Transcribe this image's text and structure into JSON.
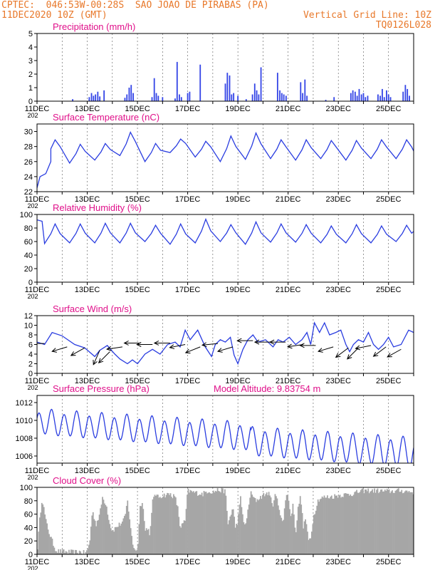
{
  "header": {
    "line1_left": "CPTEC:  046:53W-00:28S  SAO JOAO DE PIRABAS (PA)",
    "line2_left": "11DEC2020 10Z (GMT)",
    "line2_right": "Vertical Grid Line: 10Z",
    "line3_right": "TQ0126L028"
  },
  "colors": {
    "header": "#e8782a",
    "title": "#e0108a",
    "line": "#2a3de0",
    "bar": "#3344e6",
    "cloud": "#a6a6a6",
    "arrow": "#000000"
  },
  "x_labels": [
    "11DEC",
    "13DEC",
    "15DEC",
    "17DEC",
    "19DEC",
    "21DEC",
    "23DEC",
    "25DEC"
  ],
  "x_label_stub": "202",
  "chart_data": [
    {
      "id": "precip",
      "type": "bar",
      "title": "Precipitation (mm/h)",
      "x_range_days": [
        0,
        15
      ],
      "ylim": [
        0,
        5
      ],
      "yticks": [
        "0",
        "1",
        "2",
        "3",
        "4",
        "5"
      ],
      "events": [
        {
          "day": 1.42,
          "val": 0.15
        },
        {
          "day": 2.08,
          "val": 0.3
        },
        {
          "day": 2.17,
          "val": 0.6
        },
        {
          "day": 2.25,
          "val": 0.4
        },
        {
          "day": 2.33,
          "val": 0.5
        },
        {
          "day": 2.42,
          "val": 0.7
        },
        {
          "day": 2.5,
          "val": 0.35
        },
        {
          "day": 2.67,
          "val": 0.8
        },
        {
          "day": 3.5,
          "val": 0.25
        },
        {
          "day": 3.58,
          "val": 0.5
        },
        {
          "day": 3.67,
          "val": 1.0
        },
        {
          "day": 3.75,
          "val": 1.2
        },
        {
          "day": 3.83,
          "val": 0.6
        },
        {
          "day": 4.58,
          "val": 0.3
        },
        {
          "day": 4.67,
          "val": 1.7
        },
        {
          "day": 4.75,
          "val": 0.6
        },
        {
          "day": 4.83,
          "val": 0.4
        },
        {
          "day": 5.0,
          "val": 0.3
        },
        {
          "day": 5.5,
          "val": 0.2
        },
        {
          "day": 5.58,
          "val": 2.9
        },
        {
          "day": 5.67,
          "val": 0.5
        },
        {
          "day": 5.75,
          "val": 0.3
        },
        {
          "day": 6.0,
          "val": 0.6
        },
        {
          "day": 6.08,
          "val": 0.7
        },
        {
          "day": 6.5,
          "val": 2.7
        },
        {
          "day": 7.5,
          "val": 1.3
        },
        {
          "day": 7.58,
          "val": 2.1
        },
        {
          "day": 7.67,
          "val": 1.9
        },
        {
          "day": 7.75,
          "val": 0.5
        },
        {
          "day": 7.83,
          "val": 0.6
        },
        {
          "day": 8.0,
          "val": 0.4
        },
        {
          "day": 8.33,
          "val": 0.15
        },
        {
          "day": 8.58,
          "val": 0.5
        },
        {
          "day": 8.67,
          "val": 1.3
        },
        {
          "day": 8.75,
          "val": 0.8
        },
        {
          "day": 8.83,
          "val": 0.5
        },
        {
          "day": 8.92,
          "val": 2.5
        },
        {
          "day": 9.58,
          "val": 2.1
        },
        {
          "day": 9.67,
          "val": 0.8
        },
        {
          "day": 9.75,
          "val": 0.6
        },
        {
          "day": 9.83,
          "val": 0.5
        },
        {
          "day": 9.92,
          "val": 0.4
        },
        {
          "day": 10.5,
          "val": 1.4
        },
        {
          "day": 10.58,
          "val": 0.6
        },
        {
          "day": 10.67,
          "val": 1.6
        },
        {
          "day": 10.75,
          "val": 0.4
        },
        {
          "day": 11.5,
          "val": 0.1
        },
        {
          "day": 11.83,
          "val": 0.3
        },
        {
          "day": 12.5,
          "val": 0.6
        },
        {
          "day": 12.58,
          "val": 0.8
        },
        {
          "day": 12.67,
          "val": 0.7
        },
        {
          "day": 12.75,
          "val": 0.4
        },
        {
          "day": 12.83,
          "val": 0.9
        },
        {
          "day": 12.92,
          "val": 0.5
        },
        {
          "day": 13.0,
          "val": 0.6
        },
        {
          "day": 13.08,
          "val": 0.3
        },
        {
          "day": 13.17,
          "val": 0.4
        },
        {
          "day": 13.58,
          "val": 0.5
        },
        {
          "day": 13.67,
          "val": 0.4
        },
        {
          "day": 13.75,
          "val": 0.9
        },
        {
          "day": 13.83,
          "val": 0.3
        },
        {
          "day": 13.92,
          "val": 0.8
        },
        {
          "day": 14.0,
          "val": 0.5
        },
        {
          "day": 14.08,
          "val": 0.3
        },
        {
          "day": 14.58,
          "val": 0.7
        },
        {
          "day": 14.67,
          "val": 1.2
        },
        {
          "day": 14.75,
          "val": 0.9
        },
        {
          "day": 14.83,
          "val": 0.4
        }
      ]
    },
    {
      "id": "temp",
      "type": "line",
      "title": "Surface Temperature (nC)",
      "x_range_days": [
        0,
        15
      ],
      "ylim": [
        22,
        31
      ],
      "yticks": [
        "22",
        "24",
        "26",
        "28",
        "30"
      ],
      "base": 22.5,
      "mins": [
        26.5,
        25.8,
        26.2,
        26.8,
        26.0,
        27.2,
        26.6,
        26.0,
        26.3,
        26.4,
        26.2,
        26.4,
        26.2,
        26.4,
        26.4
      ],
      "maxs": [
        28.9,
        28.3,
        28.4,
        29.9,
        28.4,
        29.0,
        28.7,
        29.4,
        29.8,
        28.9,
        28.9,
        28.8,
        28.8,
        28.9,
        28.9
      ],
      "end_value": 27.4
    },
    {
      "id": "rh",
      "type": "line",
      "title": "Relative Humidity (%)",
      "x_range_days": [
        0,
        15
      ],
      "ylim": [
        0,
        100
      ],
      "yticks": [
        "0",
        "20",
        "40",
        "60",
        "80",
        "100"
      ],
      "start": 92,
      "mins": [
        57,
        58,
        58,
        58,
        60,
        56,
        58,
        60,
        56,
        59,
        59,
        58,
        58,
        58,
        60
      ],
      "maxs": [
        86,
        86,
        87,
        87,
        84,
        86,
        93,
        85,
        89,
        86,
        85,
        83,
        85,
        83,
        84
      ],
      "end_value": 75
    },
    {
      "id": "wind",
      "type": "line",
      "title": "Surface Wind (m/s)",
      "x_range_days": [
        0,
        15
      ],
      "ylim": [
        0,
        12
      ],
      "yticks": [
        "0",
        "2",
        "4",
        "6",
        "8",
        "10",
        "12"
      ],
      "points": [
        [
          0,
          6.5
        ],
        [
          0.3,
          6.0
        ],
        [
          0.6,
          8.5
        ],
        [
          1.0,
          7.8
        ],
        [
          1.5,
          6.0
        ],
        [
          1.9,
          5.3
        ],
        [
          2.3,
          3.5
        ],
        [
          2.5,
          4.8
        ],
        [
          2.8,
          5.8
        ],
        [
          3.1,
          4.0
        ],
        [
          3.3,
          3.0
        ],
        [
          3.6,
          2.0
        ],
        [
          3.8,
          2.8
        ],
        [
          4.0,
          2.0
        ],
        [
          4.3,
          4.0
        ],
        [
          4.6,
          5.0
        ],
        [
          4.9,
          4.0
        ],
        [
          5.2,
          6.0
        ],
        [
          5.5,
          6.5
        ],
        [
          5.7,
          5.5
        ],
        [
          5.9,
          9.0
        ],
        [
          6.1,
          7.0
        ],
        [
          6.4,
          9.0
        ],
        [
          6.7,
          5.5
        ],
        [
          6.95,
          3.5
        ],
        [
          7.1,
          6.0
        ],
        [
          7.3,
          7.0
        ],
        [
          7.5,
          6.5
        ],
        [
          7.7,
          7.5
        ],
        [
          7.85,
          3.8
        ],
        [
          8.0,
          2.0
        ],
        [
          8.2,
          5.0
        ],
        [
          8.4,
          7.0
        ],
        [
          8.6,
          8.0
        ],
        [
          8.8,
          6.5
        ],
        [
          9.1,
          7.0
        ],
        [
          9.4,
          5.5
        ],
        [
          9.6,
          7.0
        ],
        [
          9.8,
          6.5
        ],
        [
          10.05,
          7.5
        ],
        [
          10.3,
          6.0
        ],
        [
          10.55,
          7.0
        ],
        [
          10.75,
          8.5
        ],
        [
          10.9,
          6.0
        ],
        [
          11.05,
          10.5
        ],
        [
          11.25,
          8.5
        ],
        [
          11.45,
          10.5
        ],
        [
          11.65,
          8.0
        ],
        [
          11.9,
          8.5
        ],
        [
          12.1,
          9.0
        ],
        [
          12.3,
          6.0
        ],
        [
          12.45,
          4.5
        ],
        [
          12.6,
          6.0
        ],
        [
          12.8,
          7.0
        ],
        [
          13.0,
          6.5
        ],
        [
          13.2,
          8.5
        ],
        [
          13.4,
          6.0
        ],
        [
          13.6,
          5.0
        ],
        [
          13.8,
          6.0
        ],
        [
          14.0,
          7.5
        ],
        [
          14.2,
          5.5
        ],
        [
          14.5,
          6.0
        ],
        [
          14.8,
          9.0
        ],
        [
          15.0,
          8.5
        ]
      ],
      "arrows": [
        {
          "day": 0.3,
          "mag": 6.2,
          "dx": -1,
          "dy": 0.0
        },
        {
          "day": 1.2,
          "mag": 5.5,
          "dx": -1,
          "dy": 0.3
        },
        {
          "day": 1.9,
          "mag": 5.3,
          "dx": -0.9,
          "dy": 0.5
        },
        {
          "day": 2.5,
          "mag": 4.8,
          "dx": -0.4,
          "dy": 0.9
        },
        {
          "day": 2.9,
          "mag": 4.5,
          "dx": -0.7,
          "dy": 0.7
        },
        {
          "day": 3.4,
          "mag": 5.5,
          "dx": -1,
          "dy": 0.15
        },
        {
          "day": 4.1,
          "mag": 6.3,
          "dx": -1,
          "dy": 0.0
        },
        {
          "day": 4.6,
          "mag": 6.0,
          "dx": -1,
          "dy": 0.0
        },
        {
          "day": 5.3,
          "mag": 6.3,
          "dx": -1,
          "dy": 0.0
        },
        {
          "day": 5.9,
          "mag": 6.0,
          "dx": -1,
          "dy": 0.2
        },
        {
          "day": 6.5,
          "mag": 5.5,
          "dx": -1,
          "dy": 0.4
        },
        {
          "day": 7.2,
          "mag": 6.2,
          "dx": -1,
          "dy": 0.1
        },
        {
          "day": 7.8,
          "mag": 5.5,
          "dx": -1,
          "dy": 0.3
        },
        {
          "day": 8.6,
          "mag": 6.8,
          "dx": -1,
          "dy": 0.0
        },
        {
          "day": 9.3,
          "mag": 6.5,
          "dx": -1,
          "dy": 0.0
        },
        {
          "day": 9.9,
          "mag": 6.5,
          "dx": -1,
          "dy": 0.0
        },
        {
          "day": 10.6,
          "mag": 6.0,
          "dx": -1,
          "dy": 0.15
        },
        {
          "day": 11.1,
          "mag": 5.8,
          "dx": -1,
          "dy": 0.0
        },
        {
          "day": 11.8,
          "mag": 5.5,
          "dx": -1,
          "dy": 0.3
        },
        {
          "day": 12.4,
          "mag": 5.3,
          "dx": -0.8,
          "dy": 0.6
        },
        {
          "day": 12.8,
          "mag": 5.3,
          "dx": -0.7,
          "dy": 0.7
        },
        {
          "day": 13.3,
          "mag": 5.8,
          "dx": -1,
          "dy": 0.2
        },
        {
          "day": 13.9,
          "mag": 5.5,
          "dx": -0.8,
          "dy": 0.6
        },
        {
          "day": 14.5,
          "mag": 5.0,
          "dx": -0.9,
          "dy": 0.5
        }
      ]
    },
    {
      "id": "press",
      "type": "line",
      "title": "Surface Pressure (hPa)",
      "subtitle": "Model Altitude: 9.83754 m",
      "x_range_days": [
        0,
        15
      ],
      "ylim": [
        1005.2,
        1012.8
      ],
      "yticks": [
        "1006",
        "1008",
        "1010",
        "1012"
      ],
      "center_start": 1009.8,
      "center_end": 1006.8,
      "amp_start": 1.3,
      "amp_end": 1.6,
      "extra_drop_day": 8.5,
      "extra_drop": 0.5
    },
    {
      "id": "cloud",
      "type": "area",
      "title": "Cloud Cover (%)",
      "x_range_days": [
        0,
        15
      ],
      "ylim": [
        0,
        100
      ],
      "yticks": [
        "0",
        "20",
        "40",
        "60",
        "80",
        "100"
      ],
      "keys": [
        [
          0,
          0
        ],
        [
          0.1,
          50
        ],
        [
          0.2,
          85
        ],
        [
          0.35,
          50
        ],
        [
          0.5,
          30
        ],
        [
          0.7,
          10
        ],
        [
          0.8,
          5
        ],
        [
          1.0,
          4
        ],
        [
          1.5,
          3
        ],
        [
          1.7,
          4
        ],
        [
          1.9,
          2
        ],
        [
          2.0,
          5
        ],
        [
          2.1,
          20
        ],
        [
          2.2,
          65
        ],
        [
          2.35,
          45
        ],
        [
          2.5,
          60
        ],
        [
          2.6,
          85
        ],
        [
          2.75,
          75
        ],
        [
          2.9,
          45
        ],
        [
          3.0,
          35
        ],
        [
          3.2,
          42
        ],
        [
          3.4,
          48
        ],
        [
          3.5,
          55
        ],
        [
          3.6,
          80
        ],
        [
          3.7,
          50
        ],
        [
          3.8,
          15
        ],
        [
          3.9,
          8
        ],
        [
          4.0,
          5
        ],
        [
          4.1,
          70
        ],
        [
          4.2,
          82
        ],
        [
          4.3,
          35
        ],
        [
          4.4,
          40
        ],
        [
          4.5,
          30
        ],
        [
          4.6,
          78
        ],
        [
          4.7,
          92
        ],
        [
          4.8,
          85
        ],
        [
          5.0,
          88
        ],
        [
          5.3,
          90
        ],
        [
          5.5,
          85
        ],
        [
          5.6,
          70
        ],
        [
          5.7,
          40
        ],
        [
          5.8,
          45
        ],
        [
          5.9,
          50
        ],
        [
          6.0,
          95
        ],
        [
          6.3,
          92
        ],
        [
          6.6,
          90
        ],
        [
          6.8,
          95
        ],
        [
          7.0,
          93
        ],
        [
          7.2,
          96
        ],
        [
          7.4,
          95
        ],
        [
          7.5,
          95
        ],
        [
          7.6,
          45
        ],
        [
          7.8,
          70
        ],
        [
          7.9,
          40
        ],
        [
          8.0,
          50
        ],
        [
          8.1,
          85
        ],
        [
          8.2,
          55
        ],
        [
          8.3,
          40
        ],
        [
          8.5,
          92
        ],
        [
          8.7,
          80
        ],
        [
          9.0,
          88
        ],
        [
          9.2,
          92
        ],
        [
          9.4,
          75
        ],
        [
          9.5,
          90
        ],
        [
          9.7,
          60
        ],
        [
          9.8,
          45
        ],
        [
          9.9,
          85
        ],
        [
          10.0,
          90
        ],
        [
          10.1,
          55
        ],
        [
          10.2,
          75
        ],
        [
          10.3,
          30
        ],
        [
          10.4,
          70
        ],
        [
          10.5,
          88
        ],
        [
          10.6,
          40
        ],
        [
          10.7,
          55
        ],
        [
          10.8,
          20
        ],
        [
          10.9,
          25
        ],
        [
          11.0,
          55
        ],
        [
          11.2,
          82
        ],
        [
          11.4,
          85
        ],
        [
          11.7,
          86
        ],
        [
          12.0,
          88
        ],
        [
          12.5,
          90
        ],
        [
          13.0,
          95
        ],
        [
          13.5,
          95
        ],
        [
          14.0,
          94
        ],
        [
          14.5,
          95
        ],
        [
          15.0,
          93
        ]
      ]
    }
  ]
}
